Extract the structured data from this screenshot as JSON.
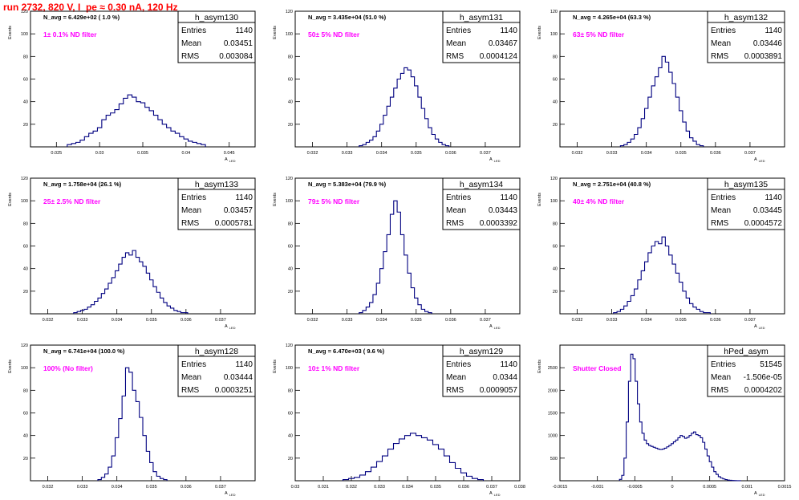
{
  "title": "run 2732,   820 V, I_pe ≈ 0.30 nA, 120 Hz",
  "y_axis_label": "Events",
  "x_axis_label": "A",
  "x_axis_subscript": "LED",
  "colors": {
    "hist": "#000080",
    "title": "#ff0000",
    "filter": "#ff00ff",
    "text": "#000000"
  },
  "chart_data": [
    {
      "type": "histogram",
      "name": "h_asym130",
      "navg": "N_avg = 6.429e+02 ( 1.0 %)",
      "filter": "1± 0.1% ND filter",
      "stats": {
        "entries": "1140",
        "mean": "0.03451",
        "rms": "0.003084"
      },
      "xlim": [
        0.022,
        0.048
      ],
      "ylim": [
        0,
        120
      ],
      "xticks": [
        "0.025",
        "0.03",
        "0.035",
        "0.04",
        "0.045"
      ],
      "xtick_values": [
        0.025,
        0.03,
        0.035,
        0.04,
        0.045
      ],
      "yticks": [
        "20",
        "40",
        "60",
        "80",
        "100",
        "120"
      ],
      "ytick_values": [
        20,
        40,
        60,
        80,
        100,
        120
      ],
      "x": [
        0.0265,
        0.027,
        0.0275,
        0.028,
        0.0285,
        0.029,
        0.0295,
        0.03,
        0.0305,
        0.031,
        0.0315,
        0.032,
        0.0325,
        0.033,
        0.0335,
        0.034,
        0.0345,
        0.035,
        0.0355,
        0.036,
        0.0365,
        0.037,
        0.0375,
        0.038,
        0.0385,
        0.039,
        0.0395,
        0.04,
        0.0405,
        0.041,
        0.0415,
        0.042
      ],
      "values": [
        2,
        3,
        4,
        6,
        9,
        12,
        14,
        17,
        24,
        28,
        30,
        33,
        38,
        43,
        46,
        44,
        40,
        39,
        35,
        32,
        28,
        24,
        20,
        17,
        14,
        12,
        9,
        7,
        5,
        4,
        3,
        2
      ]
    },
    {
      "type": "histogram",
      "name": "h_asym131",
      "navg": "N_avg = 3.435e+04 (51.0 %)",
      "filter": "50± 5% ND filter",
      "stats": {
        "entries": "1140",
        "mean": "0.03467",
        "rms": "0.0004124"
      },
      "xlim": [
        0.0315,
        0.038
      ],
      "ylim": [
        0,
        120
      ],
      "xticks": [
        "0.032",
        "0.033",
        "0.034",
        "0.035",
        "0.036",
        "0.037"
      ],
      "xtick_values": [
        0.032,
        0.033,
        0.034,
        0.035,
        0.036,
        0.037
      ],
      "yticks": [
        "20",
        "40",
        "60",
        "80",
        "100",
        "120"
      ],
      "ytick_values": [
        20,
        40,
        60,
        80,
        100,
        120
      ],
      "x": [
        0.0334,
        0.0335,
        0.0336,
        0.0337,
        0.0338,
        0.0339,
        0.034,
        0.0341,
        0.0342,
        0.0343,
        0.0344,
        0.0345,
        0.0346,
        0.0347,
        0.0348,
        0.0349,
        0.035,
        0.0351,
        0.0352,
        0.0353,
        0.0354,
        0.0355,
        0.0356,
        0.0357,
        0.0358,
        0.0359
      ],
      "values": [
        1,
        2,
        4,
        6,
        9,
        14,
        20,
        28,
        36,
        44,
        52,
        60,
        65,
        70,
        68,
        62,
        54,
        44,
        34,
        25,
        17,
        11,
        7,
        4,
        2,
        1
      ]
    },
    {
      "type": "histogram",
      "name": "h_asym132",
      "navg": "N_avg = 4.265e+04 (63.3 %)",
      "filter": "63± 5% ND filter",
      "stats": {
        "entries": "1140",
        "mean": "0.03446",
        "rms": "0.0003891"
      },
      "xlim": [
        0.0315,
        0.038
      ],
      "ylim": [
        0,
        120
      ],
      "xticks": [
        "0.032",
        "0.033",
        "0.034",
        "0.035",
        "0.036",
        "0.037"
      ],
      "xtick_values": [
        0.032,
        0.033,
        0.034,
        0.035,
        0.036,
        0.037
      ],
      "yticks": [
        "20",
        "40",
        "60",
        "80",
        "100",
        "120"
      ],
      "ytick_values": [
        20,
        40,
        60,
        80,
        100,
        120
      ],
      "x": [
        0.0333,
        0.0334,
        0.0335,
        0.0336,
        0.0337,
        0.0338,
        0.0339,
        0.034,
        0.0341,
        0.0342,
        0.0343,
        0.0344,
        0.0345,
        0.0346,
        0.0347,
        0.0348,
        0.0349,
        0.035,
        0.0351,
        0.0352,
        0.0353,
        0.0354,
        0.0355,
        0.0356
      ],
      "values": [
        1,
        2,
        4,
        7,
        11,
        17,
        25,
        34,
        44,
        54,
        62,
        70,
        80,
        75,
        66,
        56,
        44,
        32,
        22,
        14,
        8,
        5,
        2,
        1
      ]
    },
    {
      "type": "histogram",
      "name": "h_asym133",
      "navg": "N_avg = 1.758e+04 (26.1 %)",
      "filter": "25± 2.5% ND filter",
      "stats": {
        "entries": "1140",
        "mean": "0.03457",
        "rms": "0.0005781"
      },
      "xlim": [
        0.0315,
        0.038
      ],
      "ylim": [
        0,
        120
      ],
      "xticks": [
        "0.032",
        "0.033",
        "0.034",
        "0.035",
        "0.036",
        "0.037"
      ],
      "xtick_values": [
        0.032,
        0.033,
        0.034,
        0.035,
        0.036,
        0.037
      ],
      "yticks": [
        "20",
        "40",
        "60",
        "80",
        "100",
        "120"
      ],
      "ytick_values": [
        20,
        40,
        60,
        80,
        100,
        120
      ],
      "x": [
        0.0328,
        0.0329,
        0.033,
        0.0331,
        0.0332,
        0.0333,
        0.0334,
        0.0335,
        0.0336,
        0.0337,
        0.0338,
        0.0339,
        0.034,
        0.0341,
        0.0342,
        0.0343,
        0.0344,
        0.0345,
        0.0346,
        0.0347,
        0.0348,
        0.0349,
        0.035,
        0.0351,
        0.0352,
        0.0353,
        0.0354,
        0.0355,
        0.0356,
        0.0357,
        0.0358,
        0.0359,
        0.036
      ],
      "values": [
        1,
        2,
        3,
        4,
        6,
        8,
        11,
        14,
        18,
        22,
        27,
        32,
        38,
        44,
        50,
        54,
        52,
        56,
        50,
        46,
        42,
        36,
        30,
        24,
        19,
        14,
        10,
        7,
        5,
        3,
        2,
        1,
        1
      ]
    },
    {
      "type": "histogram",
      "name": "h_asym134",
      "navg": "N_avg = 5.383e+04 (79.9 %)",
      "filter": "79± 5% ND filter",
      "stats": {
        "entries": "1140",
        "mean": "0.03443",
        "rms": "0.0003392"
      },
      "xlim": [
        0.0315,
        0.038
      ],
      "ylim": [
        0,
        120
      ],
      "xticks": [
        "0.032",
        "0.033",
        "0.034",
        "0.035",
        "0.036",
        "0.037"
      ],
      "xtick_values": [
        0.032,
        0.033,
        0.034,
        0.035,
        0.036,
        0.037
      ],
      "yticks": [
        "20",
        "40",
        "60",
        "80",
        "100",
        "120"
      ],
      "ytick_values": [
        20,
        40,
        60,
        80,
        100,
        120
      ],
      "x": [
        0.0334,
        0.0335,
        0.0336,
        0.0337,
        0.0338,
        0.0339,
        0.034,
        0.0341,
        0.0342,
        0.0343,
        0.0344,
        0.0345,
        0.0346,
        0.0347,
        0.0348,
        0.0349,
        0.035,
        0.0351,
        0.0352,
        0.0353,
        0.0354
      ],
      "values": [
        1,
        3,
        6,
        10,
        17,
        27,
        40,
        55,
        70,
        88,
        100,
        90,
        70,
        52,
        36,
        23,
        14,
        8,
        4,
        2,
        1
      ]
    },
    {
      "type": "histogram",
      "name": "h_asym135",
      "navg": "N_avg = 2.751e+04 (40.8 %)",
      "filter": "40± 4% ND filter",
      "stats": {
        "entries": "1140",
        "mean": "0.03445",
        "rms": "0.0004572"
      },
      "xlim": [
        0.0315,
        0.038
      ],
      "ylim": [
        0,
        120
      ],
      "xticks": [
        "0.032",
        "0.033",
        "0.034",
        "0.035",
        "0.036",
        "0.037"
      ],
      "xtick_values": [
        0.032,
        0.033,
        0.034,
        0.035,
        0.036,
        0.037
      ],
      "yticks": [
        "20",
        "40",
        "60",
        "80",
        "100",
        "120"
      ],
      "ytick_values": [
        20,
        40,
        60,
        80,
        100,
        120
      ],
      "x": [
        0.0331,
        0.0332,
        0.0333,
        0.0334,
        0.0335,
        0.0336,
        0.0337,
        0.0338,
        0.0339,
        0.034,
        0.0341,
        0.0342,
        0.0343,
        0.0344,
        0.0345,
        0.0346,
        0.0347,
        0.0348,
        0.0349,
        0.035,
        0.0351,
        0.0352,
        0.0353,
        0.0354,
        0.0355,
        0.0356,
        0.0357,
        0.0358
      ],
      "values": [
        1,
        2,
        4,
        7,
        11,
        16,
        22,
        30,
        38,
        46,
        54,
        60,
        64,
        62,
        68,
        60,
        52,
        44,
        36,
        28,
        20,
        14,
        9,
        6,
        4,
        2,
        1,
        1
      ]
    },
    {
      "type": "histogram",
      "name": "h_asym128",
      "navg": "N_avg = 6.741e+04 (100.0 %)",
      "filter": "100% (No filter)",
      "stats": {
        "entries": "1140",
        "mean": "0.03444",
        "rms": "0.0003251"
      },
      "xlim": [
        0.0315,
        0.038
      ],
      "ylim": [
        0,
        120
      ],
      "xticks": [
        "0.032",
        "0.033",
        "0.034",
        "0.035",
        "0.036",
        "0.037"
      ],
      "xtick_values": [
        0.032,
        0.033,
        0.034,
        0.035,
        0.036,
        0.037
      ],
      "yticks": [
        "20",
        "40",
        "60",
        "80",
        "100",
        "120"
      ],
      "ytick_values": [
        20,
        40,
        60,
        80,
        100,
        120
      ],
      "x": [
        0.0335,
        0.0336,
        0.0337,
        0.0338,
        0.0339,
        0.034,
        0.0341,
        0.0342,
        0.0343,
        0.0344,
        0.0345,
        0.0346,
        0.0347,
        0.0348,
        0.0349,
        0.035,
        0.0351,
        0.0352,
        0.0353,
        0.0354
      ],
      "values": [
        1,
        3,
        6,
        12,
        22,
        38,
        55,
        75,
        100,
        96,
        80,
        70,
        56,
        40,
        26,
        16,
        8,
        4,
        2,
        1
      ]
    },
    {
      "type": "histogram",
      "name": "h_asym129",
      "navg": "N_avg = 6.470e+03 ( 9.6 %)",
      "filter": "10± 1% ND filter",
      "stats": {
        "entries": "1140",
        "mean": "0.0344",
        "rms": "0.0009057"
      },
      "xlim": [
        0.03,
        0.038
      ],
      "ylim": [
        0,
        120
      ],
      "xticks": [
        "0.03",
        "0.031",
        "0.032",
        "0.033",
        "0.034",
        "0.035",
        "0.036",
        "0.037",
        "0.038"
      ],
      "xtick_values": [
        0.03,
        0.031,
        0.032,
        0.033,
        0.034,
        0.035,
        0.036,
        0.037,
        0.038
      ],
      "yticks": [
        "20",
        "40",
        "60",
        "80",
        "100",
        "120"
      ],
      "ytick_values": [
        20,
        40,
        60,
        80,
        100,
        120
      ],
      "x": [
        0.0318,
        0.032,
        0.0322,
        0.0324,
        0.0326,
        0.0328,
        0.033,
        0.0332,
        0.0334,
        0.0336,
        0.0338,
        0.034,
        0.0342,
        0.0344,
        0.0346,
        0.0348,
        0.035,
        0.0352,
        0.0354,
        0.0356,
        0.0358,
        0.036,
        0.0362,
        0.0364,
        0.0366
      ],
      "values": [
        1,
        2,
        3,
        5,
        8,
        12,
        17,
        22,
        28,
        33,
        37,
        40,
        42,
        40,
        38,
        36,
        32,
        28,
        22,
        16,
        11,
        7,
        4,
        2,
        1
      ]
    },
    {
      "type": "histogram",
      "name": "hPed_asym",
      "navg": "",
      "filter": "Shutter Closed",
      "stats": {
        "entries": "51545",
        "mean": "-1.506e-05",
        "rms": "0.0004202"
      },
      "xlim": [
        -0.0015,
        0.0015
      ],
      "ylim": [
        0,
        3000
      ],
      "xticks": [
        "-0.0015",
        "-0.001",
        "-0.0005",
        "0",
        "0.0005",
        "0.001",
        "0.0015"
      ],
      "xtick_values": [
        -0.0015,
        -0.001,
        -0.0005,
        0,
        0.0005,
        0.001,
        0.0015
      ],
      "yticks": [
        "500",
        "1000",
        "1500",
        "2000",
        "2500"
      ],
      "ytick_values": [
        500,
        1000,
        1500,
        2000,
        2500
      ],
      "x": [
        -0.00069,
        -0.00066,
        -0.00063,
        -0.0006,
        -0.00057,
        -0.00054,
        -0.00051,
        -0.00048,
        -0.00045,
        -0.00042,
        -0.00039,
        -0.00036,
        -0.00033,
        -0.0003,
        -0.00027,
        -0.00024,
        -0.00021,
        -0.00018,
        -0.00015,
        -0.00012,
        -9e-05,
        -6e-05,
        -3e-05,
        0,
        3e-05,
        6e-05,
        9e-05,
        0.00012,
        0.00015,
        0.00018,
        0.00021,
        0.00024,
        0.00027,
        0.0003,
        0.00033,
        0.00036,
        0.00039,
        0.00042,
        0.00045,
        0.00048,
        0.00051,
        0.00054,
        0.00057,
        0.0006,
        0.00063,
        0.00066,
        0.00069,
        0.00072,
        0.00075,
        0.00078,
        0.00081,
        0.00084,
        0.00087,
        0.0009
      ],
      "values": [
        30,
        120,
        500,
        1300,
        2200,
        2800,
        2700,
        2200,
        1700,
        1300,
        1050,
        900,
        820,
        780,
        760,
        740,
        720,
        700,
        690,
        700,
        720,
        750,
        780,
        820,
        860,
        900,
        950,
        1000,
        980,
        940,
        960,
        1000,
        1050,
        1080,
        1020,
        1000,
        950,
        850,
        700,
        550,
        420,
        300,
        200,
        140,
        90,
        60,
        40,
        25,
        15,
        10,
        5,
        3,
        2,
        1
      ]
    }
  ]
}
